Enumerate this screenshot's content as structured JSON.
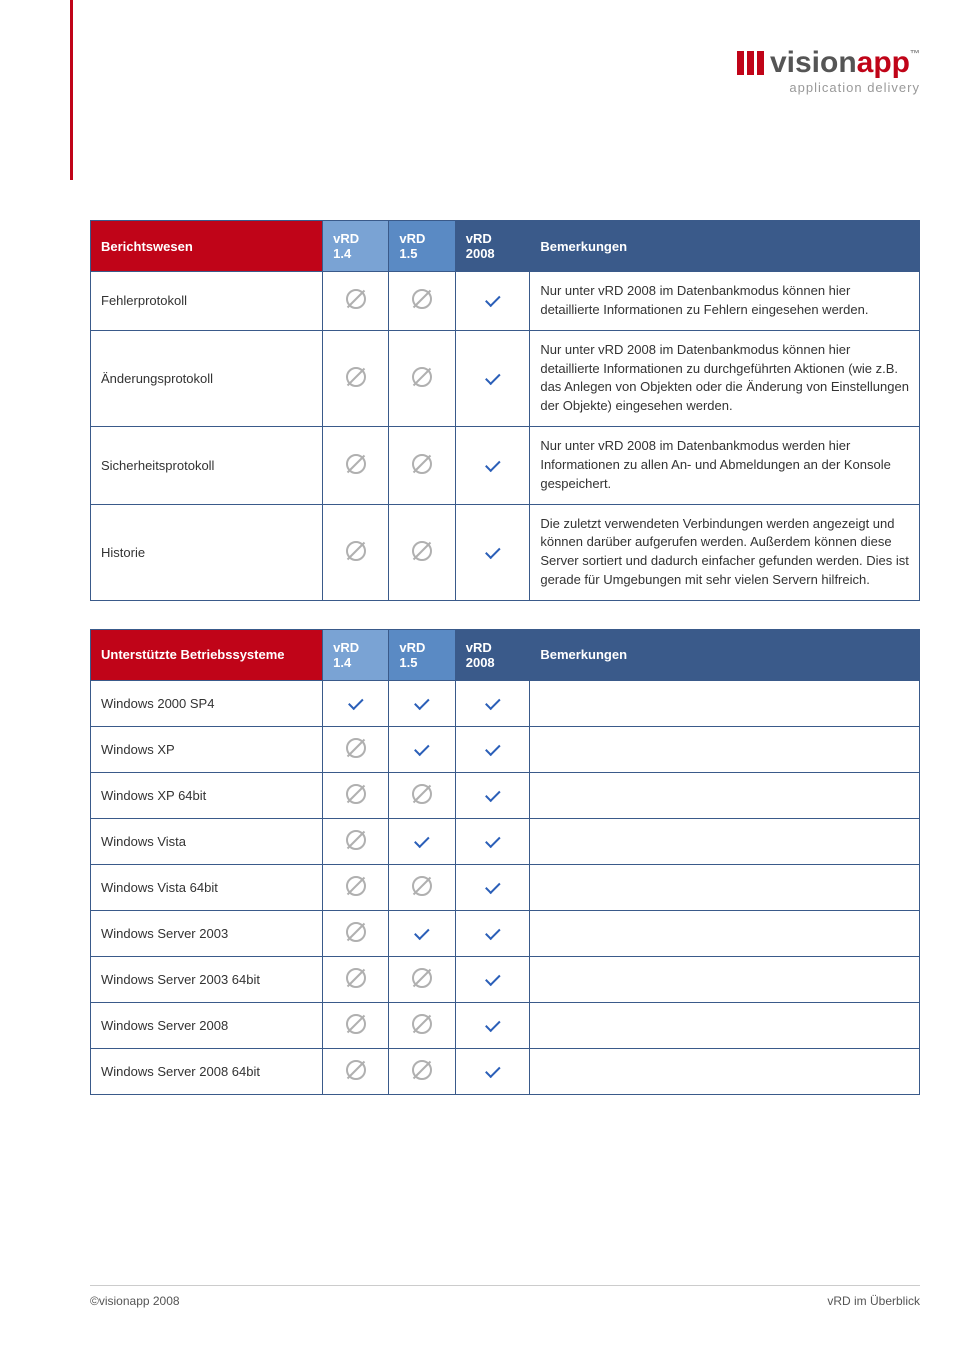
{
  "logo": {
    "word_vision": "vision",
    "word_app": "app",
    "tm": "™",
    "tagline": "application delivery",
    "bar_color": "#c00418"
  },
  "header_colors": {
    "name_bg": "#c00418",
    "v14_bg": "#7aa3d4",
    "v15_bg": "#5a8ac4",
    "v2008_bg": "#3a5a8a",
    "rem_bg": "#3a5a8a",
    "border": "#3a5a8a"
  },
  "col_widths": {
    "name": "28%",
    "v14": "8%",
    "v15": "8%",
    "v2008": "9%",
    "rem": "47%"
  },
  "columns": {
    "name_t1": "Berichtswesen",
    "name_t2": "Unterstützte Betriebssysteme",
    "v14": "vRD 1.4",
    "v15": "vRD 1.5",
    "v2008": "vRD 2008",
    "rem": "Bemerkungen"
  },
  "table1": [
    {
      "name": "Fehlerprotokoll",
      "v14": "no",
      "v15": "no",
      "v2008": "yes",
      "rem": "Nur unter vRD 2008 im Datenbankmodus können hier detaillierte Informationen zu Fehlern eingesehen werden."
    },
    {
      "name": "Änderungsprotokoll",
      "v14": "no",
      "v15": "no",
      "v2008": "yes",
      "rem": "Nur unter vRD 2008 im Datenbankmodus können hier detaillierte Informationen zu durchgeführten Aktionen (wie z.B. das Anlegen von Objekten oder die Änderung von Einstellungen der Objekte) eingesehen werden."
    },
    {
      "name": "Sicherheitsprotokoll",
      "v14": "no",
      "v15": "no",
      "v2008": "yes",
      "rem": "Nur unter vRD 2008 im Datenbankmodus werden hier Informationen zu allen An- und Abmeldungen an der Konsole gespeichert."
    },
    {
      "name": "Historie",
      "v14": "no",
      "v15": "no",
      "v2008": "yes",
      "rem": "Die zuletzt verwendeten Verbindungen werden angezeigt und können darüber aufgerufen werden. Außerdem können diese Server sortiert und dadurch einfacher gefunden werden. Dies ist gerade für Umgebungen mit sehr vielen Servern hilfreich."
    }
  ],
  "table2": [
    {
      "name": "Windows 2000 SP4",
      "v14": "yes",
      "v15": "yes",
      "v2008": "yes",
      "rem": ""
    },
    {
      "name": "Windows XP",
      "v14": "no",
      "v15": "yes",
      "v2008": "yes",
      "rem": ""
    },
    {
      "name": "Windows XP 64bit",
      "v14": "no",
      "v15": "no",
      "v2008": "yes",
      "rem": ""
    },
    {
      "name": "Windows Vista",
      "v14": "no",
      "v15": "yes",
      "v2008": "yes",
      "rem": ""
    },
    {
      "name": "Windows Vista 64bit",
      "v14": "no",
      "v15": "no",
      "v2008": "yes",
      "rem": ""
    },
    {
      "name": "Windows Server 2003",
      "v14": "no",
      "v15": "yes",
      "v2008": "yes",
      "rem": ""
    },
    {
      "name": "Windows Server 2003 64bit",
      "v14": "no",
      "v15": "no",
      "v2008": "yes",
      "rem": ""
    },
    {
      "name": "Windows Server 2008",
      "v14": "no",
      "v15": "no",
      "v2008": "yes",
      "rem": ""
    },
    {
      "name": "Windows Server 2008 64bit",
      "v14": "no",
      "v15": "no",
      "v2008": "yes",
      "rem": ""
    }
  ],
  "footer": {
    "left": "©visionapp 2008",
    "right": "vRD im Überblick"
  }
}
